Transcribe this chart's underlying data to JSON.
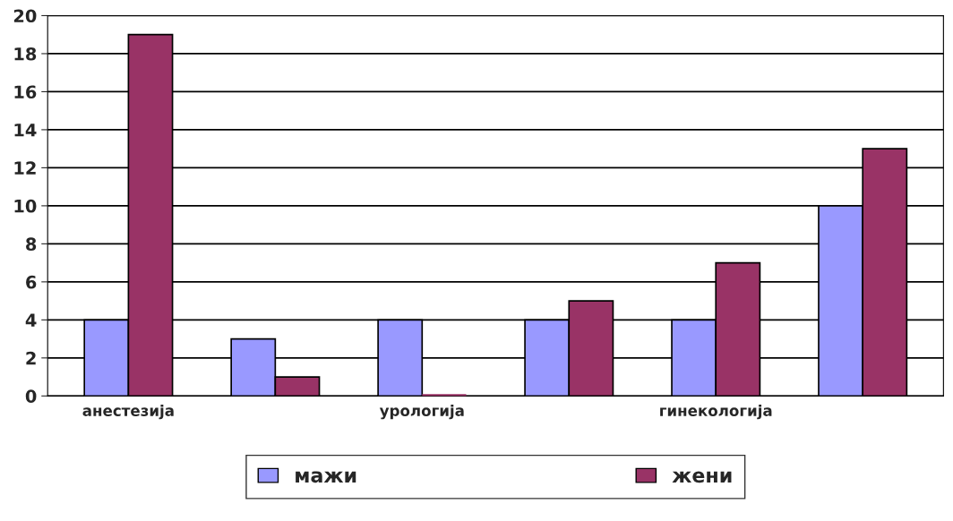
{
  "chart_data": {
    "type": "bar",
    "categories": [
      "анестезија",
      null,
      "урологија",
      null,
      "гинекологија",
      null
    ],
    "series": [
      {
        "name": "мажи",
        "color": "#9999ff",
        "values": [
          4,
          3,
          4,
          4,
          4,
          10
        ]
      },
      {
        "name": "жени",
        "color": "#993366",
        "values": [
          19,
          1,
          0,
          5,
          7,
          13
        ]
      }
    ],
    "ylim": [
      0,
      20
    ],
    "yticks": [
      0,
      2,
      4,
      6,
      8,
      10,
      12,
      14,
      16,
      18,
      20
    ],
    "grid": "y",
    "legend": "bottom"
  }
}
